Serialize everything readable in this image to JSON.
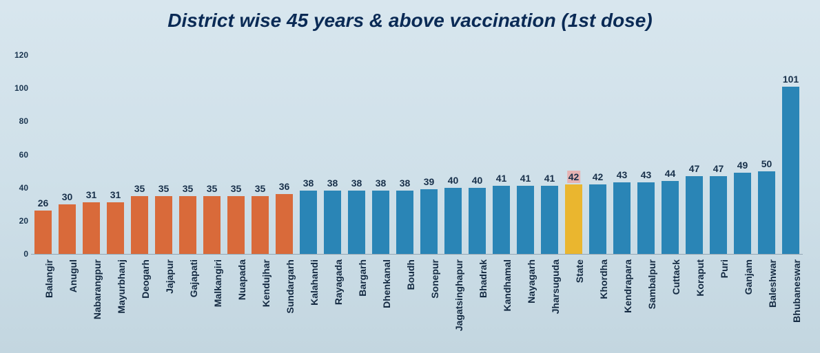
{
  "chart": {
    "type": "bar",
    "title": "District wise 45 years & above vaccination (1st dose)",
    "title_fontsize": 28,
    "title_color": "#0a2a55",
    "background_gradient": [
      "#d8e6ee",
      "#cfe0e9",
      "#c3d6e0"
    ],
    "ylim": [
      0,
      120
    ],
    "ytick_step": 20,
    "yticks": [
      0,
      20,
      40,
      60,
      80,
      100,
      120
    ],
    "yaxis_label_color": "#1a3550",
    "bar_width": 0.7,
    "value_label_color": "#18304a",
    "value_label_fontsize": 14,
    "xaxis_label_fontsize": 14,
    "xaxis_label_color": "#142a42",
    "highlight_value_bg": "#e6b3b3",
    "series": [
      {
        "label": "Balangir",
        "value": 26,
        "color": "#d96a3a",
        "highlight": false
      },
      {
        "label": "Anugul",
        "value": 30,
        "color": "#d96a3a",
        "highlight": false
      },
      {
        "label": "Nabarangpur",
        "value": 31,
        "color": "#d96a3a",
        "highlight": false
      },
      {
        "label": "Mayurbhanj",
        "value": 31,
        "color": "#d96a3a",
        "highlight": false
      },
      {
        "label": "Deogarh",
        "value": 35,
        "color": "#d96a3a",
        "highlight": false
      },
      {
        "label": "Jajapur",
        "value": 35,
        "color": "#d96a3a",
        "highlight": false
      },
      {
        "label": "Gajapati",
        "value": 35,
        "color": "#d96a3a",
        "highlight": false
      },
      {
        "label": "Malkangiri",
        "value": 35,
        "color": "#d96a3a",
        "highlight": false
      },
      {
        "label": "Nuapada",
        "value": 35,
        "color": "#d96a3a",
        "highlight": false
      },
      {
        "label": "Kendujhar",
        "value": 35,
        "color": "#d96a3a",
        "highlight": false
      },
      {
        "label": "Sundargarh",
        "value": 36,
        "color": "#d96a3a",
        "highlight": false
      },
      {
        "label": "Kalahandi",
        "value": 38,
        "color": "#2a85b6",
        "highlight": false
      },
      {
        "label": "Rayagada",
        "value": 38,
        "color": "#2a85b6",
        "highlight": false
      },
      {
        "label": "Bargarh",
        "value": 38,
        "color": "#2a85b6",
        "highlight": false
      },
      {
        "label": "Dhenkanal",
        "value": 38,
        "color": "#2a85b6",
        "highlight": false
      },
      {
        "label": "Boudh",
        "value": 38,
        "color": "#2a85b6",
        "highlight": false
      },
      {
        "label": "Sonepur",
        "value": 39,
        "color": "#2a85b6",
        "highlight": false
      },
      {
        "label": "Jagatsinghapur",
        "value": 40,
        "color": "#2a85b6",
        "highlight": false
      },
      {
        "label": "Bhadrak",
        "value": 40,
        "color": "#2a85b6",
        "highlight": false
      },
      {
        "label": "Kandhamal",
        "value": 41,
        "color": "#2a85b6",
        "highlight": false
      },
      {
        "label": "Nayagarh",
        "value": 41,
        "color": "#2a85b6",
        "highlight": false
      },
      {
        "label": "Jharsuguda",
        "value": 41,
        "color": "#2a85b6",
        "highlight": false
      },
      {
        "label": "State",
        "value": 42,
        "color": "#eab62f",
        "highlight": true
      },
      {
        "label": "Khordha",
        "value": 42,
        "color": "#2a85b6",
        "highlight": false
      },
      {
        "label": "Kendrapara",
        "value": 43,
        "color": "#2a85b6",
        "highlight": false
      },
      {
        "label": "Sambalpur",
        "value": 43,
        "color": "#2a85b6",
        "highlight": false
      },
      {
        "label": "Cuttack",
        "value": 44,
        "color": "#2a85b6",
        "highlight": false
      },
      {
        "label": "Koraput",
        "value": 47,
        "color": "#2a85b6",
        "highlight": false
      },
      {
        "label": "Puri",
        "value": 47,
        "color": "#2a85b6",
        "highlight": false
      },
      {
        "label": "Ganjam",
        "value": 49,
        "color": "#2a85b6",
        "highlight": false
      },
      {
        "label": "Baleshwar",
        "value": 50,
        "color": "#2a85b6",
        "highlight": false
      },
      {
        "label": "Bhubaneswar",
        "value": 101,
        "color": "#2a85b6",
        "highlight": false
      }
    ]
  }
}
